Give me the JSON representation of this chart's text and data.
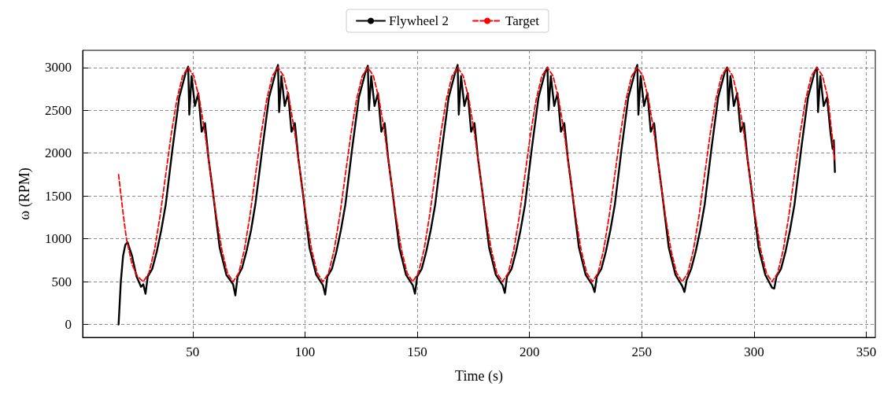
{
  "chart_data": {
    "type": "line",
    "xlabel": "Time (s)",
    "ylabel": "ω (RPM)",
    "xlim": [
      1,
      354
    ],
    "ylim": [
      -150,
      3200
    ],
    "xticks": [
      50,
      100,
      150,
      200,
      250,
      300,
      350
    ],
    "yticks": [
      0,
      500,
      1000,
      1500,
      2000,
      2500,
      3000
    ],
    "grid": true,
    "legend": "top",
    "marker": "none",
    "series": [
      {
        "name": "Flywheel 2",
        "color": "#000000",
        "line_style": "solid",
        "x": [
          17,
          18,
          19,
          20,
          21,
          23,
          25,
          27,
          28,
          29,
          30,
          32,
          34,
          36,
          38,
          41,
          44,
          47,
          48,
          48.5,
          49.5,
          51,
          52.5,
          54,
          55.5,
          57,
          59,
          62,
          65,
          68,
          69,
          70,
          72,
          74,
          76,
          78,
          81,
          84,
          87,
          88,
          88.5,
          89.5,
          91,
          92.5,
          94,
          95.5,
          97,
          99,
          102,
          105,
          108,
          109,
          110,
          112,
          114,
          116,
          118,
          121,
          124,
          127,
          128,
          128.5,
          129.5,
          131,
          132.5,
          134,
          135.5,
          137,
          139,
          142,
          145,
          148,
          149,
          150,
          152,
          154,
          156,
          158,
          161,
          164,
          167,
          168,
          168.5,
          169.5,
          171,
          172.5,
          174,
          175.5,
          177,
          179,
          182,
          185,
          188,
          189,
          190,
          192,
          194,
          196,
          198,
          201,
          204,
          207,
          208,
          208.5,
          209.5,
          211,
          212.5,
          214,
          215.5,
          217,
          219,
          222,
          225,
          228,
          229,
          230,
          232,
          234,
          236,
          238,
          241,
          244,
          247,
          248,
          248.5,
          249.5,
          251,
          252.5,
          254,
          255.5,
          257,
          259,
          262,
          265,
          268,
          269,
          270,
          272,
          274,
          276,
          278,
          281,
          284,
          287,
          288,
          288.5,
          289.5,
          291,
          292.5,
          294,
          295.5,
          297,
          299,
          302,
          305,
          308,
          309,
          310,
          312,
          314,
          316,
          318,
          321,
          324,
          327,
          328,
          328.5,
          329.5,
          331,
          332.5,
          334,
          335,
          335.5,
          336
        ],
        "values": [
          0,
          500,
          800,
          930,
          960,
          800,
          560,
          440,
          470,
          360,
          560,
          650,
          850,
          1100,
          1400,
          2050,
          2650,
          2950,
          3010,
          2450,
          2900,
          2550,
          2700,
          2250,
          2350,
          1950,
          1550,
          900,
          580,
          470,
          340,
          560,
          660,
          860,
          1100,
          1420,
          2050,
          2650,
          2950,
          3030,
          2480,
          2900,
          2550,
          2700,
          2250,
          2350,
          1950,
          1550,
          900,
          580,
          460,
          350,
          560,
          650,
          850,
          1100,
          1400,
          2050,
          2650,
          2950,
          3020,
          2500,
          2900,
          2550,
          2700,
          2250,
          2350,
          1950,
          1550,
          900,
          580,
          460,
          360,
          560,
          650,
          850,
          1100,
          1400,
          2050,
          2650,
          2950,
          3030,
          2450,
          2900,
          2550,
          2700,
          2250,
          2350,
          1950,
          1550,
          900,
          580,
          460,
          370,
          560,
          650,
          850,
          1100,
          1400,
          2050,
          2650,
          2950,
          3000,
          2500,
          2900,
          2550,
          2700,
          2250,
          2350,
          1950,
          1550,
          900,
          580,
          460,
          380,
          560,
          650,
          850,
          1100,
          1400,
          2050,
          2650,
          2950,
          3030,
          2450,
          2900,
          2550,
          2700,
          2250,
          2350,
          1950,
          1550,
          900,
          580,
          450,
          380,
          520,
          650,
          850,
          1100,
          1400,
          2050,
          2650,
          2950,
          3000,
          2500,
          2900,
          2550,
          2700,
          2250,
          2350,
          1950,
          1550,
          900,
          580,
          430,
          420,
          560,
          650,
          850,
          1100,
          1400,
          2050,
          2650,
          2950,
          3000,
          2480,
          2900,
          2550,
          2650,
          2250,
          2050,
          2150,
          1780
        ]
      },
      {
        "name": "Target",
        "color": "#ff0000",
        "line_style": "dashed",
        "x": [
          17,
          19,
          20.5,
          23,
          25.5,
          28,
          30.5,
          33,
          35.5,
          38,
          40.5,
          43,
          45.5,
          48,
          50.5,
          53,
          55.5,
          58,
          60.5,
          63,
          65.5,
          68,
          70.5,
          73,
          75.5,
          78,
          80.5,
          83,
          85.5,
          88,
          90.5,
          93,
          95.5,
          98,
          100.5,
          103,
          105.5,
          108,
          110.5,
          113,
          115.5,
          118,
          120.5,
          123,
          125.5,
          128,
          130.5,
          133,
          135.5,
          138,
          140.5,
          143,
          145.5,
          148,
          150.5,
          153,
          155.5,
          158,
          160.5,
          163,
          165.5,
          168,
          170.5,
          173,
          175.5,
          178,
          180.5,
          183,
          185.5,
          188,
          190.5,
          193,
          195.5,
          198,
          200.5,
          203,
          205.5,
          208,
          210.5,
          213,
          215.5,
          218,
          220.5,
          223,
          225.5,
          228,
          230.5,
          233,
          235.5,
          238,
          240.5,
          243,
          245.5,
          248,
          250.5,
          253,
          255.5,
          258,
          260.5,
          263,
          265.5,
          268,
          270.5,
          273,
          275.5,
          278,
          280.5,
          283,
          285.5,
          288,
          290.5,
          293,
          295.5,
          298,
          300.5,
          303,
          305.5,
          308,
          310.5,
          313,
          315.5,
          318,
          320.5,
          323,
          325.5,
          328,
          330.5,
          333,
          336
        ],
        "values": [
          1750,
          1300,
          1000,
          700,
          560,
          500,
          600,
          870,
          1270,
          1750,
          2230,
          2630,
          2900,
          3000,
          2900,
          2630,
          2230,
          1750,
          1270,
          870,
          600,
          500,
          600,
          870,
          1270,
          1750,
          2230,
          2630,
          2900,
          3000,
          2900,
          2630,
          2230,
          1750,
          1270,
          870,
          600,
          500,
          600,
          870,
          1270,
          1750,
          2230,
          2630,
          2900,
          3000,
          2900,
          2630,
          2230,
          1750,
          1270,
          870,
          600,
          500,
          600,
          870,
          1270,
          1750,
          2230,
          2630,
          2900,
          3000,
          2900,
          2630,
          2230,
          1750,
          1270,
          870,
          600,
          500,
          600,
          870,
          1270,
          1750,
          2230,
          2630,
          2900,
          3000,
          2900,
          2630,
          2230,
          1750,
          1270,
          870,
          600,
          500,
          600,
          870,
          1270,
          1750,
          2230,
          2630,
          2900,
          3000,
          2900,
          2630,
          2230,
          1750,
          1270,
          870,
          600,
          500,
          600,
          870,
          1270,
          1750,
          2230,
          2630,
          2900,
          3000,
          2900,
          2630,
          2230,
          1750,
          1270,
          870,
          600,
          500,
          600,
          870,
          1270,
          1750,
          2230,
          2630,
          2900,
          3000,
          2900,
          2630,
          1900
        ]
      }
    ]
  }
}
